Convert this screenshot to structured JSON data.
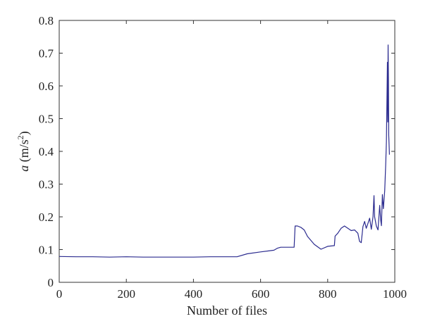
{
  "chart_data": {
    "type": "line",
    "xlabel": "Number of files",
    "ylabel_italic": "a",
    "ylabel_unit_prefix": " (m/s",
    "ylabel_unit_sup": "2",
    "ylabel_unit_suffix": ")",
    "xlim": [
      0,
      1000
    ],
    "ylim": [
      0,
      0.8
    ],
    "xticks": [
      0,
      200,
      400,
      600,
      800,
      1000
    ],
    "yticks": [
      0,
      0.1,
      0.2,
      0.3,
      0.4,
      0.5,
      0.6,
      0.7,
      0.8
    ],
    "xtick_labels": [
      "0",
      "200",
      "400",
      "600",
      "800",
      "1000"
    ],
    "ytick_labels": [
      "0",
      "0.1",
      "0.2",
      "0.3",
      "0.4",
      "0.5",
      "0.6",
      "0.7",
      "0.8"
    ],
    "grid": false,
    "color": "#2b2b8f",
    "series": [
      {
        "x": [
          0,
          50,
          100,
          150,
          200,
          250,
          300,
          350,
          400,
          450,
          500,
          530,
          560,
          600,
          640,
          650,
          660,
          700,
          703,
          710,
          720,
          730,
          740,
          760,
          780,
          800,
          820,
          822,
          830,
          840,
          850,
          860,
          870,
          880,
          890,
          895,
          900,
          905,
          910,
          915,
          920,
          925,
          930,
          935,
          938,
          940,
          945,
          950,
          955,
          958,
          960,
          963,
          966,
          970,
          973,
          975,
          977,
          978,
          979,
          980,
          981,
          982,
          984
        ],
        "y": [
          0.079,
          0.078,
          0.078,
          0.077,
          0.078,
          0.077,
          0.077,
          0.077,
          0.077,
          0.078,
          0.078,
          0.078,
          0.087,
          0.093,
          0.098,
          0.104,
          0.107,
          0.107,
          0.172,
          0.172,
          0.168,
          0.16,
          0.14,
          0.116,
          0.101,
          0.11,
          0.112,
          0.141,
          0.15,
          0.165,
          0.172,
          0.165,
          0.158,
          0.16,
          0.15,
          0.125,
          0.121,
          0.17,
          0.186,
          0.165,
          0.18,
          0.196,
          0.162,
          0.2,
          0.265,
          0.2,
          0.172,
          0.16,
          0.235,
          0.19,
          0.173,
          0.268,
          0.225,
          0.28,
          0.36,
          0.43,
          0.6,
          0.672,
          0.49,
          0.725,
          0.62,
          0.45,
          0.39
        ]
      }
    ]
  }
}
